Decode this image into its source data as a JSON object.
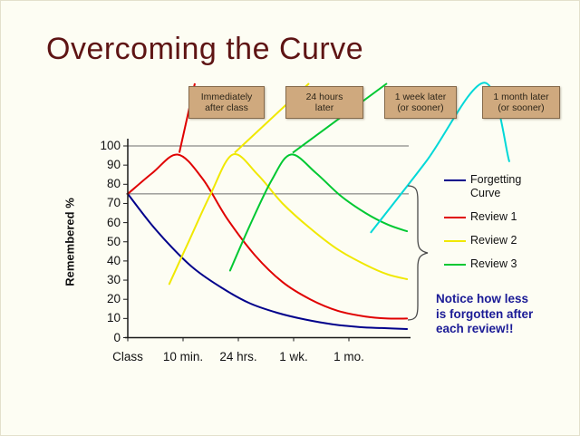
{
  "slide": {
    "title": "Overcoming the Curve",
    "title_color": "#5e1414",
    "background": "#fdfdf3"
  },
  "callouts": [
    {
      "lines": "Immediately\nafter class"
    },
    {
      "lines": "24 hours\nlater"
    },
    {
      "lines": "1 week later\n(or sooner)"
    },
    {
      "lines": "1 month later\n(or sooner)"
    }
  ],
  "axis": {
    "y_title": "Remembered %",
    "y_ticks": [
      "100",
      "90",
      "80",
      "70",
      "60",
      "50",
      "40",
      "30",
      "20",
      "10",
      "0"
    ],
    "x_labels": [
      "Class",
      "10 min.",
      "24 hrs.",
      "1 wk.",
      "1 mo."
    ]
  },
  "legend": {
    "items": [
      {
        "label": "Forgetting\nCurve",
        "color": "#00008b"
      },
      {
        "label": "Review 1",
        "color": "#e00000"
      },
      {
        "label": "Review 2",
        "color": "#f0e800"
      },
      {
        "label": "Review 3",
        "color": "#00c832"
      }
    ]
  },
  "annotation": {
    "text": "Notice how less\nis forgotten after\neach review!!",
    "color": "#1b1b96"
  },
  "chart_data": {
    "type": "line",
    "title": "Overcoming the Curve",
    "ylabel": "Remembered %",
    "ylim": [
      0,
      100
    ],
    "y_ticks": [
      100,
      90,
      80,
      70,
      60,
      50,
      40,
      30,
      20,
      10,
      0
    ],
    "x_categories": [
      "Class",
      "10 min.",
      "24 hrs.",
      "1 wk.",
      "1 mo."
    ],
    "x_encoding": "series x values are category index units: 0=Class, 1=10 min., 2=24 hrs., 3=1 wk., 4=1 mo.",
    "gridlines_y": [
      100,
      75
    ],
    "legend_position": "right",
    "series": [
      {
        "name": "Forgetting Curve",
        "color": "#00008b",
        "points": [
          [
            0,
            75
          ],
          [
            0.4,
            60
          ],
          [
            0.8,
            47
          ],
          [
            1.2,
            36
          ],
          [
            1.7,
            26
          ],
          [
            2.2,
            18
          ],
          [
            2.7,
            13
          ],
          [
            3.2,
            9.5
          ],
          [
            3.7,
            7
          ],
          [
            4.2,
            5.5
          ],
          [
            4.6,
            5
          ],
          [
            5.05,
            4.5
          ]
        ]
      },
      {
        "name": "Review 1",
        "color": "#e00000",
        "points": [
          [
            0,
            75
          ],
          [
            0.45,
            86
          ],
          [
            0.9,
            95.5
          ],
          [
            1.35,
            83
          ],
          [
            1.8,
            62
          ],
          [
            2.3,
            43
          ],
          [
            2.8,
            29
          ],
          [
            3.3,
            20
          ],
          [
            3.8,
            14
          ],
          [
            4.3,
            11
          ],
          [
            4.7,
            10
          ],
          [
            5.05,
            10
          ]
        ]
      },
      {
        "name": "Review 2",
        "color": "#f0e800",
        "points": [
          [
            0.75,
            28
          ],
          [
            1.1,
            50
          ],
          [
            1.5,
            75
          ],
          [
            1.9,
            95.5
          ],
          [
            2.35,
            85
          ],
          [
            2.8,
            70
          ],
          [
            3.3,
            57
          ],
          [
            3.8,
            46
          ],
          [
            4.3,
            38
          ],
          [
            4.7,
            33
          ],
          [
            5.05,
            30.5
          ]
        ]
      },
      {
        "name": "Review 3",
        "color": "#00c832",
        "points": [
          [
            1.85,
            35
          ],
          [
            2.2,
            58
          ],
          [
            2.6,
            82
          ],
          [
            2.95,
            95.5
          ],
          [
            3.4,
            86
          ],
          [
            3.85,
            74
          ],
          [
            4.3,
            65
          ],
          [
            4.7,
            59
          ],
          [
            5.05,
            55.5
          ]
        ]
      },
      {
        "name": "Review 4 (1 month later, goes off chart)",
        "color": "#00d8d8",
        "points": [
          [
            4.4,
            55
          ],
          [
            5.4,
            92
          ],
          [
            6.45,
            133
          ],
          [
            6.9,
            92
          ]
        ]
      }
    ],
    "review_label_links": [
      {
        "series": "Review 1",
        "label": "Immediately after class"
      },
      {
        "series": "Review 2",
        "label": "24 hours later"
      },
      {
        "series": "Review 3",
        "label": "1 week later (or sooner)"
      },
      {
        "series": "Review 4 (1 month later, goes off chart)",
        "label": "1 month later (or sooner)"
      }
    ]
  }
}
